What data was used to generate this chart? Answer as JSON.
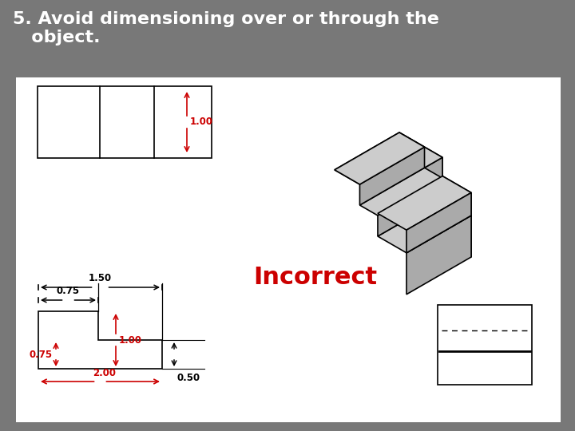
{
  "bg_slide": "#787878",
  "bg_white": "#ffffff",
  "title_text": "5. Avoid dimensioning over or through the\n   object.",
  "title_color": "#ffffff",
  "title_fontsize": 16,
  "incorrect_text": "Incorrect",
  "incorrect_color": "#cc0000",
  "incorrect_fontsize": 22,
  "dim_color": "#cc0000",
  "line_color": "#000000",
  "lw": 1.2,
  "front_dark": "#888888",
  "front_mid": "#aaaaaa",
  "top_light": "#cccccc",
  "top_lighter": "#dddddd",
  "side_dark": "#666666"
}
